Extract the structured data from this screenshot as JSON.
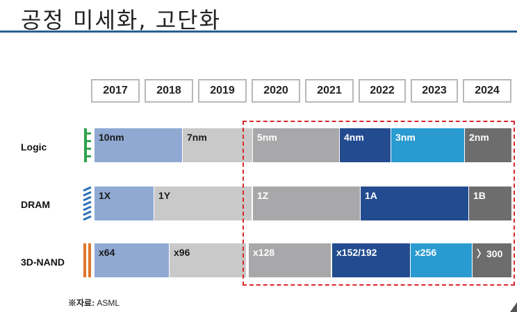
{
  "title": "공정 미세화, 고단화",
  "years": [
    "2017",
    "2018",
    "2019",
    "2020",
    "2021",
    "2022",
    "2023",
    "2024"
  ],
  "rows": {
    "logic": {
      "label": "Logic",
      "segments": [
        "10nm",
        "7nm",
        "5nm",
        "4nm",
        "3nm",
        "2nm"
      ]
    },
    "dram": {
      "label": "DRAM",
      "segments": [
        "1X",
        "1Y",
        "1Z",
        "1A",
        "1B"
      ]
    },
    "nand": {
      "label": "3D-NAND",
      "segments": [
        "x64",
        "x96",
        "x128",
        "x152/192",
        "x256",
        "〉300"
      ]
    }
  },
  "source": {
    "prefix": "※자료:",
    "name": "ASML"
  },
  "colors": {
    "light_blue": "#8fa9d3",
    "light_gray": "#c9c9c9",
    "mid_gray": "#a8a8ab",
    "navy": "#234b8f",
    "cyan": "#2a9bd0",
    "dark_gray": "#6d6d6d",
    "highlight": "#d9262c"
  }
}
